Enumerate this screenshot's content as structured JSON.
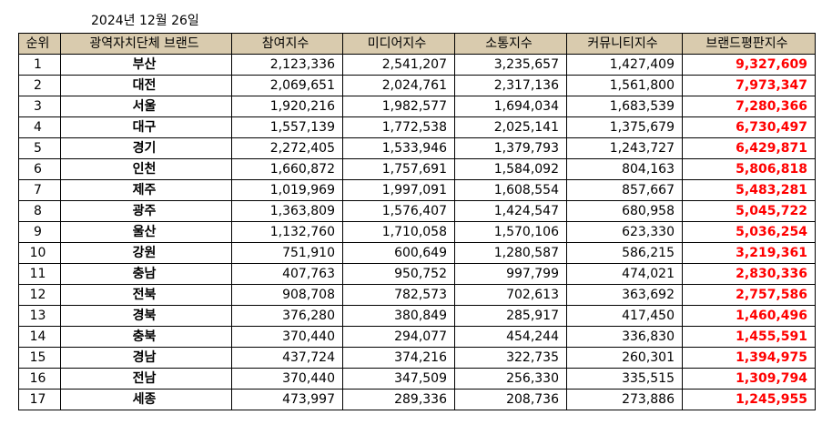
{
  "date": "2024년 12월 26일",
  "colors": {
    "header_bg": "#d9cbae",
    "total_text": "#ff0000"
  },
  "table": {
    "headers": [
      "순위",
      "광역자치단체 브랜드",
      "참여지수",
      "미디어지수",
      "소통지수",
      "커뮤니티지수",
      "브랜드평판지수"
    ],
    "rows": [
      [
        "1",
        "부산",
        "2,123,336",
        "2,541,207",
        "3,235,657",
        "1,427,409",
        "9,327,609"
      ],
      [
        "2",
        "대전",
        "2,069,651",
        "2,024,761",
        "2,317,136",
        "1,561,800",
        "7,973,347"
      ],
      [
        "3",
        "서울",
        "1,920,216",
        "1,982,577",
        "1,694,034",
        "1,683,539",
        "7,280,366"
      ],
      [
        "4",
        "대구",
        "1,557,139",
        "1,772,538",
        "2,025,141",
        "1,375,679",
        "6,730,497"
      ],
      [
        "5",
        "경기",
        "2,272,405",
        "1,533,946",
        "1,379,793",
        "1,243,727",
        "6,429,871"
      ],
      [
        "6",
        "인천",
        "1,660,872",
        "1,757,691",
        "1,584,092",
        "804,163",
        "5,806,818"
      ],
      [
        "7",
        "제주",
        "1,019,969",
        "1,997,091",
        "1,608,554",
        "857,667",
        "5,483,281"
      ],
      [
        "8",
        "광주",
        "1,363,809",
        "1,576,407",
        "1,424,547",
        "680,958",
        "5,045,722"
      ],
      [
        "9",
        "울산",
        "1,132,760",
        "1,710,058",
        "1,570,106",
        "623,330",
        "5,036,254"
      ],
      [
        "10",
        "강원",
        "751,910",
        "600,649",
        "1,280,587",
        "586,215",
        "3,219,361"
      ],
      [
        "11",
        "충남",
        "407,763",
        "950,752",
        "997,799",
        "474,021",
        "2,830,336"
      ],
      [
        "12",
        "전북",
        "908,708",
        "782,573",
        "702,613",
        "363,692",
        "2,757,586"
      ],
      [
        "13",
        "경북",
        "376,280",
        "380,849",
        "285,917",
        "417,450",
        "1,460,496"
      ],
      [
        "14",
        "충북",
        "370,440",
        "294,077",
        "454,244",
        "336,830",
        "1,455,591"
      ],
      [
        "15",
        "경남",
        "437,724",
        "374,216",
        "322,735",
        "260,301",
        "1,394,975"
      ],
      [
        "16",
        "전남",
        "370,440",
        "347,509",
        "256,330",
        "335,515",
        "1,309,794"
      ],
      [
        "17",
        "세종",
        "473,997",
        "289,336",
        "208,736",
        "273,886",
        "1,245,955"
      ]
    ]
  }
}
